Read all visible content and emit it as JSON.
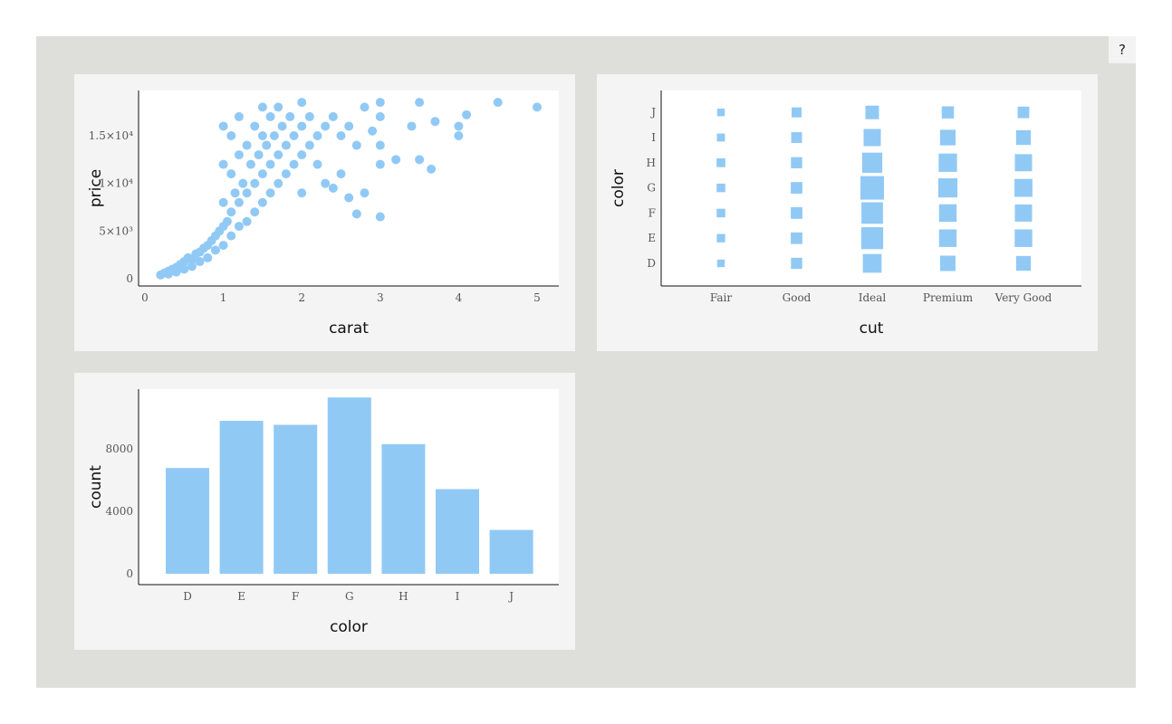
{
  "help": {
    "label": "?"
  },
  "colors": {
    "mark": "#91c9f5",
    "panel": "#f4f4f4",
    "background": "#dededa"
  },
  "chart_data": [
    {
      "type": "scatter",
      "title": "",
      "xlabel": "carat",
      "ylabel": "price",
      "xlim": [
        0,
        5.1
      ],
      "ylim": [
        0,
        19200
      ],
      "x_ticks": [
        {
          "value": 0,
          "label": "0"
        },
        {
          "value": 1,
          "label": "1"
        },
        {
          "value": 2,
          "label": "2"
        },
        {
          "value": 3,
          "label": "3"
        },
        {
          "value": 4,
          "label": "4"
        },
        {
          "value": 5,
          "label": "5"
        }
      ],
      "y_ticks": [
        {
          "value": 0,
          "label": "0"
        },
        {
          "value": 5000,
          "label": "5×10³"
        },
        {
          "value": 10000,
          "label": "1×10⁴"
        },
        {
          "value": 15000,
          "label": "1.5×10⁴"
        }
      ],
      "points": [
        [
          0.2,
          400
        ],
        [
          0.25,
          600
        ],
        [
          0.3,
          800
        ],
        [
          0.3,
          500
        ],
        [
          0.35,
          1000
        ],
        [
          0.4,
          1200
        ],
        [
          0.4,
          700
        ],
        [
          0.45,
          1500
        ],
        [
          0.5,
          1800
        ],
        [
          0.5,
          1000
        ],
        [
          0.55,
          2200
        ],
        [
          0.6,
          2000
        ],
        [
          0.6,
          1300
        ],
        [
          0.65,
          2600
        ],
        [
          0.7,
          2800
        ],
        [
          0.7,
          1800
        ],
        [
          0.75,
          3200
        ],
        [
          0.8,
          3500
        ],
        [
          0.8,
          2200
        ],
        [
          0.85,
          4000
        ],
        [
          0.9,
          4500
        ],
        [
          0.9,
          3000
        ],
        [
          0.95,
          5000
        ],
        [
          1.0,
          5500
        ],
        [
          1.0,
          3500
        ],
        [
          1.0,
          8000
        ],
        [
          1.0,
          12000
        ],
        [
          1.0,
          16000
        ],
        [
          1.05,
          6000
        ],
        [
          1.1,
          7000
        ],
        [
          1.1,
          4500
        ],
        [
          1.1,
          11000
        ],
        [
          1.1,
          15000
        ],
        [
          1.15,
          9000
        ],
        [
          1.2,
          8000
        ],
        [
          1.2,
          5500
        ],
        [
          1.2,
          13000
        ],
        [
          1.2,
          17000
        ],
        [
          1.25,
          10000
        ],
        [
          1.3,
          9000
        ],
        [
          1.3,
          6000
        ],
        [
          1.3,
          14000
        ],
        [
          1.35,
          12000
        ],
        [
          1.4,
          10000
        ],
        [
          1.4,
          7000
        ],
        [
          1.4,
          16000
        ],
        [
          1.45,
          13000
        ],
        [
          1.5,
          11000
        ],
        [
          1.5,
          8000
        ],
        [
          1.5,
          15000
        ],
        [
          1.5,
          18000
        ],
        [
          1.55,
          14000
        ],
        [
          1.6,
          12000
        ],
        [
          1.6,
          9000
        ],
        [
          1.6,
          17000
        ],
        [
          1.65,
          15000
        ],
        [
          1.7,
          13000
        ],
        [
          1.7,
          10000
        ],
        [
          1.7,
          18000
        ],
        [
          1.75,
          16000
        ],
        [
          1.8,
          14000
        ],
        [
          1.8,
          11000
        ],
        [
          1.85,
          17000
        ],
        [
          1.9,
          15000
        ],
        [
          1.9,
          12000
        ],
        [
          2.0,
          16000
        ],
        [
          2.0,
          13000
        ],
        [
          2.0,
          9000
        ],
        [
          2.0,
          18500
        ],
        [
          2.1,
          14000
        ],
        [
          2.1,
          17000
        ],
        [
          2.2,
          15000
        ],
        [
          2.2,
          12000
        ],
        [
          2.3,
          16000
        ],
        [
          2.3,
          10000
        ],
        [
          2.4,
          17000
        ],
        [
          2.4,
          9500
        ],
        [
          2.5,
          15000
        ],
        [
          2.5,
          11000
        ],
        [
          2.6,
          16000
        ],
        [
          2.6,
          8500
        ],
        [
          2.7,
          14000
        ],
        [
          2.7,
          6800
        ],
        [
          2.8,
          18000
        ],
        [
          2.8,
          9000
        ],
        [
          2.9,
          15500
        ],
        [
          3.0,
          18500
        ],
        [
          3.0,
          12000
        ],
        [
          3.0,
          6500
        ],
        [
          3.0,
          14000
        ],
        [
          3.0,
          17000
        ],
        [
          3.2,
          12500
        ],
        [
          3.4,
          16000
        ],
        [
          3.5,
          18500
        ],
        [
          3.5,
          12500
        ],
        [
          3.65,
          11500
        ],
        [
          3.7,
          16500
        ],
        [
          4.0,
          16000
        ],
        [
          4.0,
          15000
        ],
        [
          4.1,
          17200
        ],
        [
          4.5,
          18500
        ],
        [
          5.0,
          18000
        ]
      ]
    },
    {
      "type": "scatter",
      "title": "",
      "xlabel": "cut",
      "ylabel": "color",
      "x_categories": [
        "Fair",
        "Good",
        "Ideal",
        "Premium",
        "Very Good"
      ],
      "y_categories": [
        "D",
        "E",
        "F",
        "G",
        "H",
        "I",
        "J"
      ],
      "cells": [
        {
          "cut": "Fair",
          "color": "D",
          "size": 0.2
        },
        {
          "cut": "Fair",
          "color": "E",
          "size": 0.24
        },
        {
          "cut": "Fair",
          "color": "F",
          "size": 0.25
        },
        {
          "cut": "Fair",
          "color": "G",
          "size": 0.25
        },
        {
          "cut": "Fair",
          "color": "H",
          "size": 0.26
        },
        {
          "cut": "Fair",
          "color": "I",
          "size": 0.22
        },
        {
          "cut": "Fair",
          "color": "J",
          "size": 0.2
        },
        {
          "cut": "Good",
          "color": "D",
          "size": 0.38
        },
        {
          "cut": "Good",
          "color": "E",
          "size": 0.4
        },
        {
          "cut": "Good",
          "color": "F",
          "size": 0.4
        },
        {
          "cut": "Good",
          "color": "G",
          "size": 0.4
        },
        {
          "cut": "Good",
          "color": "H",
          "size": 0.38
        },
        {
          "cut": "Good",
          "color": "I",
          "size": 0.36
        },
        {
          "cut": "Good",
          "color": "J",
          "size": 0.32
        },
        {
          "cut": "Ideal",
          "color": "D",
          "size": 0.76
        },
        {
          "cut": "Ideal",
          "color": "E",
          "size": 0.92
        },
        {
          "cut": "Ideal",
          "color": "F",
          "size": 0.9
        },
        {
          "cut": "Ideal",
          "color": "G",
          "size": 1.0
        },
        {
          "cut": "Ideal",
          "color": "H",
          "size": 0.83
        },
        {
          "cut": "Ideal",
          "color": "I",
          "size": 0.68
        },
        {
          "cut": "Ideal",
          "color": "J",
          "size": 0.5
        },
        {
          "cut": "Premium",
          "color": "D",
          "size": 0.59
        },
        {
          "cut": "Premium",
          "color": "E",
          "size": 0.7
        },
        {
          "cut": "Premium",
          "color": "F",
          "size": 0.7
        },
        {
          "cut": "Premium",
          "color": "G",
          "size": 0.78
        },
        {
          "cut": "Premium",
          "color": "H",
          "size": 0.74
        },
        {
          "cut": "Premium",
          "color": "I",
          "size": 0.6
        },
        {
          "cut": "Premium",
          "color": "J",
          "size": 0.43
        },
        {
          "cut": "Very Good",
          "color": "D",
          "size": 0.56
        },
        {
          "cut": "Very Good",
          "color": "E",
          "size": 0.7
        },
        {
          "cut": "Very Good",
          "color": "F",
          "size": 0.68
        },
        {
          "cut": "Very Good",
          "color": "G",
          "size": 0.72
        },
        {
          "cut": "Very Good",
          "color": "H",
          "size": 0.68
        },
        {
          "cut": "Very Good",
          "color": "I",
          "size": 0.56
        },
        {
          "cut": "Very Good",
          "color": "J",
          "size": 0.4
        }
      ]
    },
    {
      "type": "bar",
      "title": "",
      "xlabel": "color",
      "ylabel": "count",
      "categories": [
        "D",
        "E",
        "F",
        "G",
        "H",
        "I",
        "J"
      ],
      "values": [
        6775,
        9797,
        9542,
        11292,
        8304,
        5422,
        2808
      ],
      "ylim": [
        0,
        12000
      ],
      "y_ticks": [
        {
          "value": 0,
          "label": "0"
        },
        {
          "value": 4000,
          "label": "4000"
        },
        {
          "value": 8000,
          "label": "8000"
        }
      ]
    }
  ]
}
